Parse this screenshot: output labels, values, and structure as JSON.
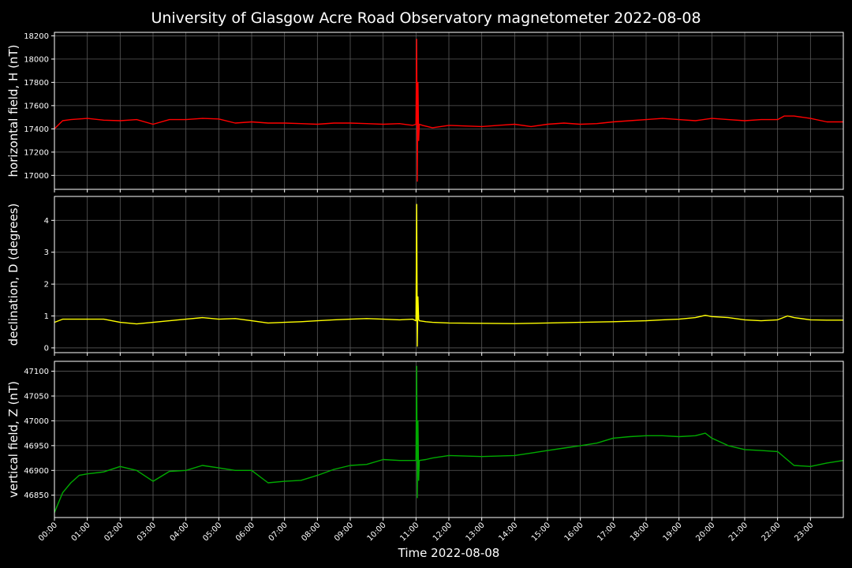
{
  "chart_data": {
    "title": "University of Glasgow Acre Road Observatory magnetometer 2022-08-08",
    "xlabel": "Time 2022-08-08",
    "x_tick_labels": [
      "00:00",
      "01:00",
      "02:00",
      "03:00",
      "04:00",
      "05:00",
      "06:00",
      "07:00",
      "08:00",
      "09:00",
      "10:00",
      "11:00",
      "12:00",
      "13:00",
      "14:00",
      "15:00",
      "16:00",
      "17:00",
      "18:00",
      "19:00",
      "20:00",
      "21:00",
      "22:00",
      "23:00"
    ],
    "xlim_hours": [
      0,
      24
    ],
    "grid": true,
    "panels": [
      {
        "type": "line",
        "ylabel": "horizontal field, H (nT)",
        "color": "#ff0000",
        "ylim": [
          16880,
          18230
        ],
        "yticks": [
          17000,
          17200,
          17400,
          17600,
          17800,
          18000,
          18200
        ],
        "x_hours": [
          0,
          0.25,
          0.5,
          0.75,
          1,
          1.5,
          2,
          2.5,
          3,
          3.5,
          4,
          4.5,
          5,
          5.5,
          6,
          6.5,
          7,
          7.5,
          8,
          8.5,
          9,
          9.5,
          10,
          10.5,
          10.9,
          11,
          11.02,
          11.04,
          11.06,
          11.08,
          11.1,
          11.2,
          11.5,
          12,
          12.5,
          13,
          13.5,
          14,
          14.5,
          15,
          15.5,
          16,
          16.5,
          17,
          17.5,
          18,
          18.5,
          19,
          19.5,
          20,
          20.5,
          21,
          21.5,
          22,
          22.2,
          22.5,
          23,
          23.5,
          24
        ],
        "values": [
          17400,
          17470,
          17480,
          17485,
          17490,
          17475,
          17470,
          17480,
          17440,
          17480,
          17480,
          17490,
          17485,
          17450,
          17460,
          17450,
          17450,
          17445,
          17440,
          17450,
          17450,
          17445,
          17440,
          17445,
          17430,
          17440,
          18170,
          16950,
          17800,
          17300,
          17440,
          17430,
          17410,
          17430,
          17425,
          17420,
          17430,
          17440,
          17420,
          17440,
          17450,
          17440,
          17445,
          17460,
          17470,
          17480,
          17490,
          17480,
          17470,
          17490,
          17480,
          17470,
          17480,
          17480,
          17510,
          17510,
          17490,
          17460,
          17460
        ]
      },
      {
        "type": "line",
        "ylabel": "declination, D (degrees)",
        "color": "#ffff00",
        "ylim": [
          -0.15,
          4.75
        ],
        "yticks": [
          0,
          1,
          2,
          3,
          4
        ],
        "x_hours": [
          0,
          0.25,
          0.5,
          1,
          1.5,
          2,
          2.5,
          3,
          3.5,
          4,
          4.5,
          5,
          5.5,
          6,
          6.5,
          7,
          7.5,
          8,
          8.5,
          9,
          9.5,
          10,
          10.5,
          10.9,
          11,
          11.02,
          11.04,
          11.06,
          11.08,
          11.1,
          11.3,
          11.5,
          12,
          13,
          14,
          15,
          16,
          17,
          18,
          18.5,
          19,
          19.5,
          19.8,
          20,
          20.5,
          21,
          21.5,
          22,
          22.3,
          22.5,
          23,
          23.5,
          24
        ],
        "values": [
          0.8,
          0.9,
          0.9,
          0.9,
          0.9,
          0.8,
          0.75,
          0.8,
          0.85,
          0.9,
          0.95,
          0.9,
          0.92,
          0.85,
          0.78,
          0.8,
          0.82,
          0.85,
          0.88,
          0.9,
          0.92,
          0.9,
          0.88,
          0.9,
          0.85,
          4.5,
          0.05,
          1.6,
          0.9,
          0.85,
          0.82,
          0.8,
          0.78,
          0.77,
          0.76,
          0.78,
          0.8,
          0.82,
          0.85,
          0.88,
          0.9,
          0.95,
          1.02,
          0.98,
          0.95,
          0.88,
          0.85,
          0.88,
          1.0,
          0.95,
          0.88,
          0.87,
          0.87
        ]
      },
      {
        "type": "line",
        "ylabel": "vertical field, Z (nT)",
        "color": "#00aa00",
        "ylim": [
          46805,
          47120
        ],
        "yticks": [
          46850,
          46900,
          46950,
          47000,
          47050,
          47100
        ],
        "x_hours": [
          0,
          0.25,
          0.5,
          0.75,
          1,
          1.5,
          2,
          2.5,
          3,
          3.5,
          4,
          4.5,
          5,
          5.5,
          6,
          6.5,
          7,
          7.5,
          8,
          8.5,
          9,
          9.5,
          10,
          10.5,
          10.9,
          11,
          11.02,
          11.04,
          11.06,
          11.08,
          11.1,
          11.3,
          11.5,
          12,
          13,
          14,
          14.5,
          15,
          15.5,
          16,
          16.5,
          17,
          17.5,
          18,
          18.5,
          19,
          19.5,
          19.8,
          20,
          20.5,
          21,
          21.5,
          22,
          22.5,
          23,
          23.5,
          24
        ],
        "values": [
          46815,
          46855,
          46875,
          46890,
          46893,
          46897,
          46908,
          46900,
          46878,
          46898,
          46900,
          46910,
          46905,
          46900,
          46900,
          46875,
          46878,
          46880,
          46890,
          46902,
          46910,
          46912,
          46922,
          46920,
          46920,
          46920,
          47110,
          46845,
          47000,
          46880,
          46920,
          46922,
          46925,
          46930,
          46928,
          46930,
          46935,
          46940,
          46945,
          46950,
          46955,
          46965,
          46968,
          46970,
          46970,
          46968,
          46970,
          46975,
          46965,
          46950,
          46942,
          46940,
          46938,
          46910,
          46908,
          46915,
          46920
        ]
      }
    ]
  }
}
